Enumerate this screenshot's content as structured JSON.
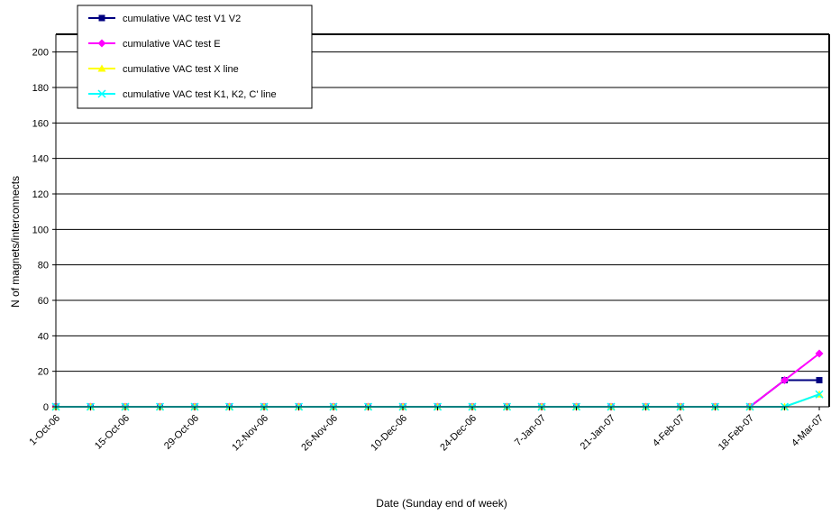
{
  "chart_data": {
    "type": "line",
    "xlabel": "Date (Sunday end of week)",
    "ylabel": "N of magnets/interconnects",
    "ylim": [
      0,
      210
    ],
    "y_ticks": [
      0,
      20,
      40,
      60,
      80,
      100,
      120,
      140,
      160,
      180,
      200
    ],
    "grid": "horizontal",
    "legend_position": "top-left",
    "x": [
      "1-Oct-06",
      "8-Oct-06",
      "15-Oct-06",
      "22-Oct-06",
      "29-Oct-06",
      "5-Nov-06",
      "12-Nov-06",
      "19-Nov-06",
      "26-Nov-06",
      "3-Dec-06",
      "10-Dec-06",
      "17-Dec-06",
      "24-Dec-06",
      "31-Dec-06",
      "7-Jan-07",
      "14-Jan-07",
      "21-Jan-07",
      "28-Jan-07",
      "4-Feb-07",
      "11-Feb-07",
      "18-Feb-07",
      "25-Feb-07",
      "4-Mar-07"
    ],
    "x_tick_labels": [
      "1-Oct-06",
      "15-Oct-06",
      "29-Oct-06",
      "12-Nov-06",
      "26-Nov-06",
      "10-Dec-06",
      "24-Dec-06",
      "7-Jan-07",
      "21-Jan-07",
      "4-Feb-07",
      "18-Feb-07",
      "4-Mar-07"
    ],
    "series": [
      {
        "name": "cumulative VAC test V1 V2",
        "color": "#000080",
        "marker": "square",
        "values": [
          0,
          0,
          0,
          0,
          0,
          0,
          0,
          0,
          0,
          0,
          0,
          0,
          0,
          0,
          0,
          0,
          0,
          0,
          0,
          0,
          0,
          15,
          15
        ]
      },
      {
        "name": "cumulative VAC test E",
        "color": "#ff00ff",
        "marker": "diamond",
        "values": [
          0,
          0,
          0,
          0,
          0,
          0,
          0,
          0,
          0,
          0,
          0,
          0,
          0,
          0,
          0,
          0,
          0,
          0,
          0,
          0,
          0,
          15,
          30
        ]
      },
      {
        "name": "cumulative VAC test X line",
        "color": "#ffff00",
        "marker": "triangle",
        "values": [
          0,
          0,
          0,
          0,
          0,
          0,
          0,
          0,
          0,
          0,
          0,
          0,
          0,
          0,
          0,
          0,
          0,
          0,
          0,
          0,
          0,
          0,
          7
        ]
      },
      {
        "name": "cumulative VAC test K1, K2, C' line",
        "color": "#00ffff",
        "marker": "x",
        "values": [
          0,
          0,
          0,
          0,
          0,
          0,
          0,
          0,
          0,
          0,
          0,
          0,
          0,
          0,
          0,
          0,
          0,
          0,
          0,
          0,
          0,
          0,
          7
        ]
      }
    ]
  }
}
